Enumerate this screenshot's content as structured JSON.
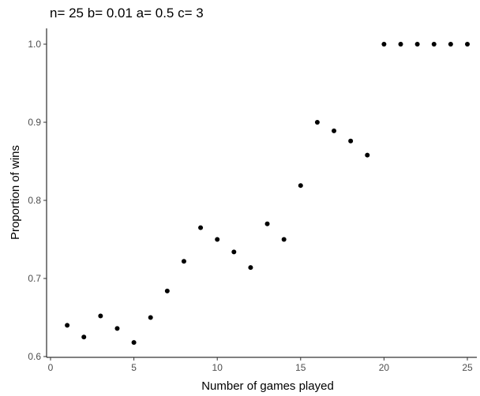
{
  "chart_data": {
    "type": "scatter",
    "title": "n= 25 b= 0.01 a= 0.5 c= 3",
    "xlabel": "Number of games played",
    "ylabel": "Proportion of wins",
    "xlim": [
      0,
      25
    ],
    "ylim": [
      0.6,
      1.0
    ],
    "xticks": [
      "0",
      "5",
      "10",
      "15",
      "20",
      "25"
    ],
    "yticks": [
      "0.6",
      "0.7",
      "0.8",
      "0.9",
      "1.0"
    ],
    "grid": false,
    "point_color": "#000000",
    "x": [
      1,
      2,
      3,
      4,
      5,
      6,
      7,
      8,
      9,
      10,
      11,
      12,
      13,
      14,
      15,
      16,
      17,
      18,
      19,
      20,
      21,
      22,
      23,
      24,
      25
    ],
    "y": [
      0.64,
      0.625,
      0.652,
      0.636,
      0.618,
      0.65,
      0.684,
      0.722,
      0.765,
      0.75,
      0.734,
      0.714,
      0.77,
      0.75,
      0.819,
      0.9,
      0.889,
      0.876,
      0.858,
      1.0,
      1.0,
      1.0,
      1.0,
      1.0,
      1.0
    ]
  }
}
